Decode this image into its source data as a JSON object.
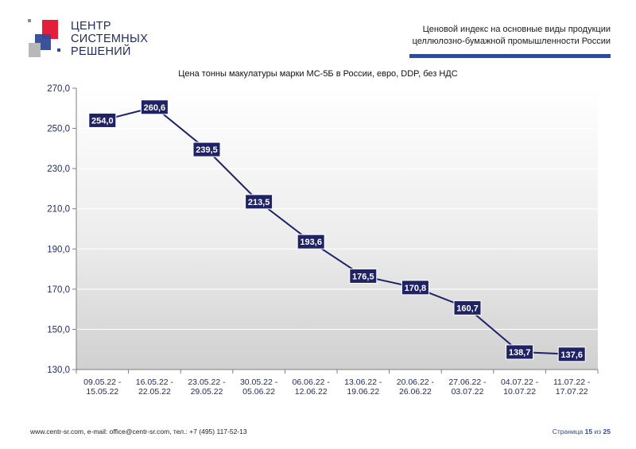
{
  "logo": {
    "lines": [
      "ЦЕНТР",
      "СИСТЕМНЫХ",
      "РЕШЕНИЙ"
    ]
  },
  "header": {
    "line1": "Ценовой индекс на основные виды продукции",
    "line2": "целлюлозно-бумажной промышленности России"
  },
  "colors": {
    "accent": "#2f4a9a",
    "label_bg": "#1f2366",
    "line": "#1f2366",
    "logo_red": "#e31d3a",
    "logo_blue": "#2f4a9a"
  },
  "chart_data": {
    "type": "line",
    "title": "Цена тонны макулатуры марки МС-5Б в России, евро, DDP, без НДС",
    "categories": [
      [
        "09.05.22 -",
        "15.05.22"
      ],
      [
        "16.05.22 -",
        "22.05.22"
      ],
      [
        "23.05.22 -",
        "29.05.22"
      ],
      [
        "30.05.22 -",
        "05.06.22"
      ],
      [
        "06.06.22 -",
        "12.06.22"
      ],
      [
        "13.06.22 -",
        "19.06.22"
      ],
      [
        "20.06.22 -",
        "26.06.22"
      ],
      [
        "27.06.22 -",
        "03.07.22"
      ],
      [
        "04.07.22 -",
        "10.07.22"
      ],
      [
        "11.07.22 -",
        "17.07.22"
      ]
    ],
    "values": [
      254.0,
      260.6,
      239.5,
      213.5,
      193.6,
      176.5,
      170.8,
      160.7,
      138.7,
      137.6
    ],
    "value_labels": [
      "254,0",
      "260,6",
      "239,5",
      "213,5",
      "193,6",
      "176,5",
      "170,8",
      "160,7",
      "138,7",
      "137,6"
    ],
    "ylim": [
      130,
      270
    ],
    "yticks": [
      130,
      150,
      170,
      190,
      210,
      230,
      250,
      270
    ],
    "ytick_labels": [
      "130,0",
      "150,0",
      "170,0",
      "190,0",
      "210,0",
      "230,0",
      "250,0",
      "270,0"
    ],
    "grid": true
  },
  "footer": {
    "contacts": "www.centr-sr.com, e-mail: office@centr-sr.com, тел.: +7 (495) 117-52-13",
    "page_word": "Страница",
    "page_num": "15",
    "of_word": "из",
    "page_total": "25"
  }
}
